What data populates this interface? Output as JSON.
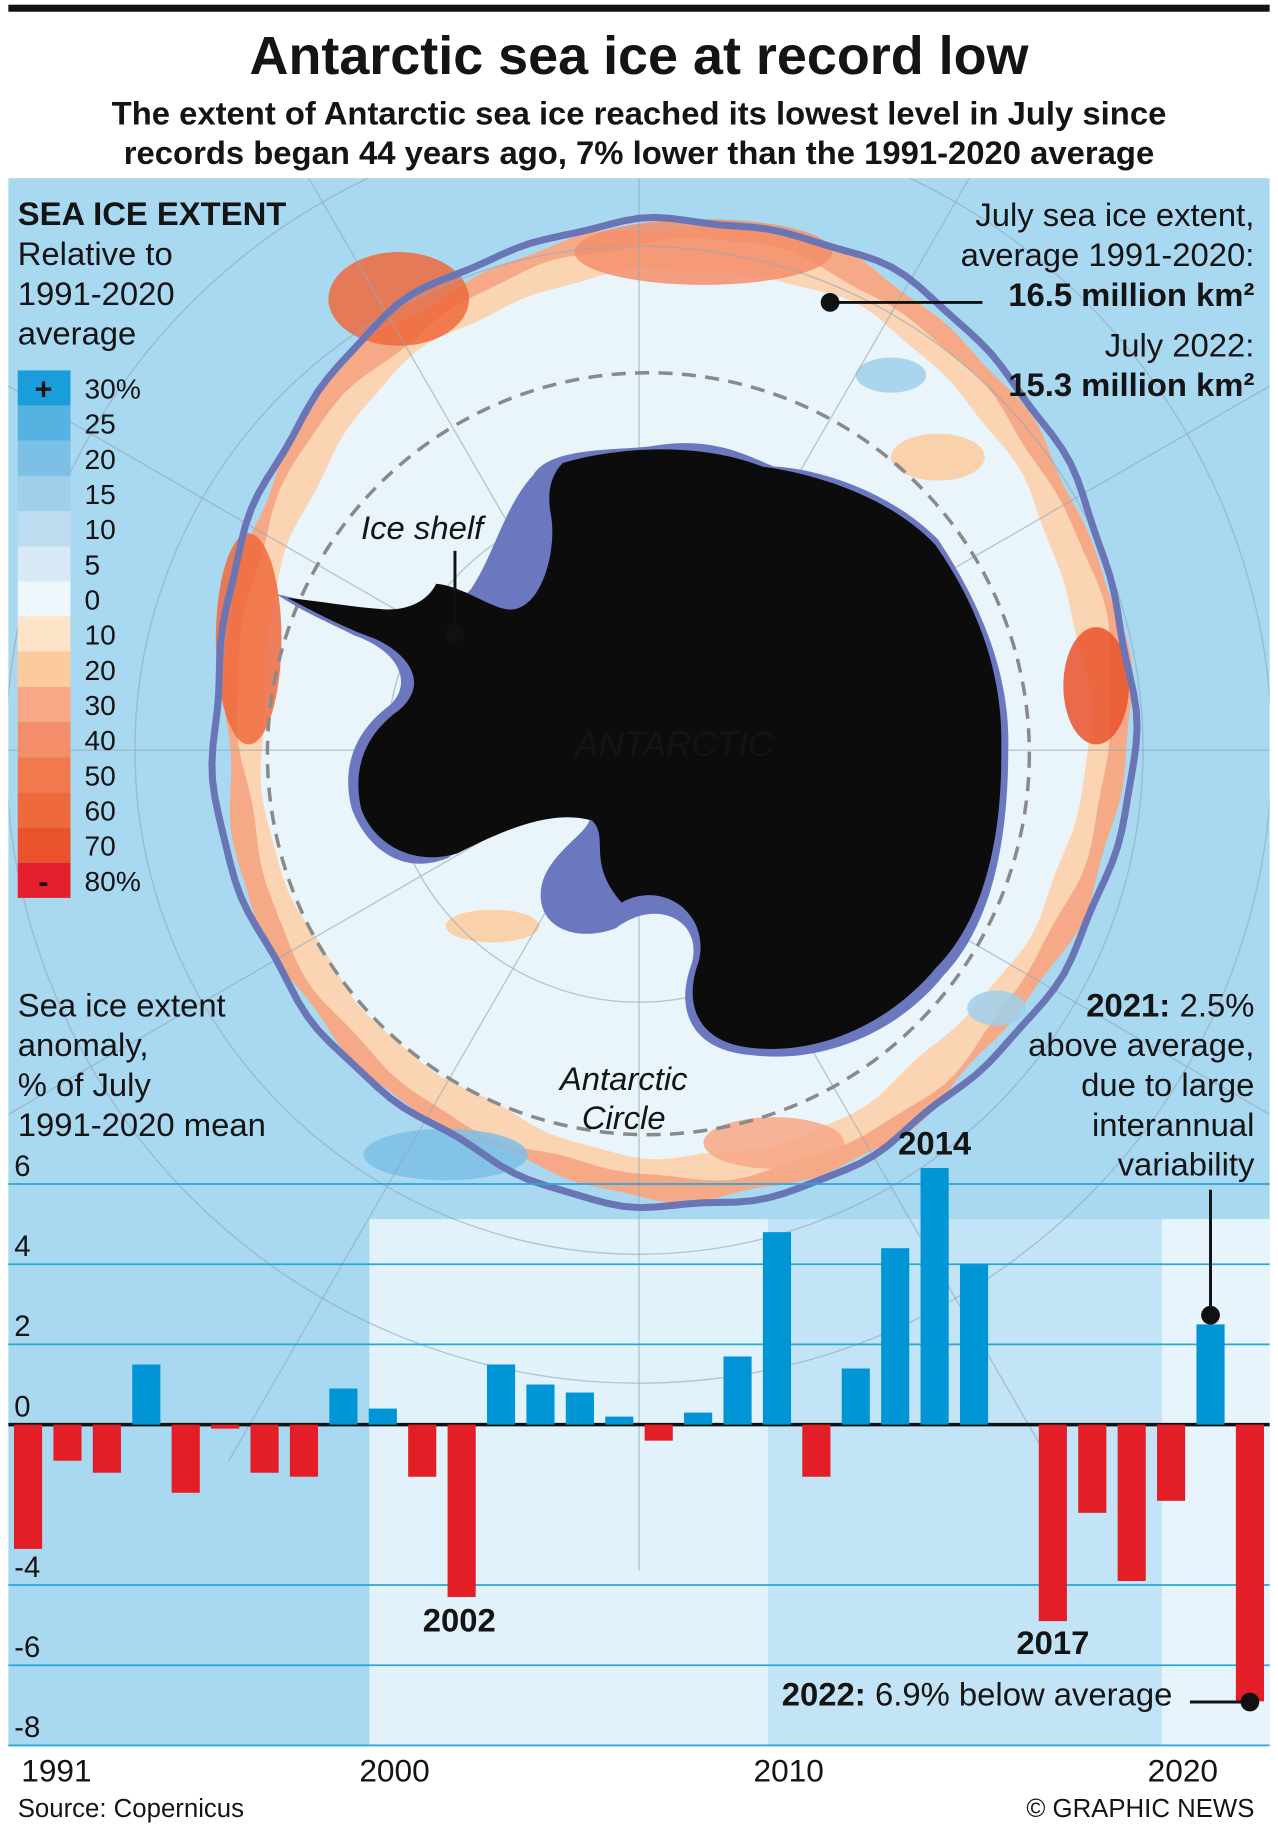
{
  "header": {
    "title": "Antarctic sea ice at record low",
    "subtitle": [
      "The extent of Antarctic sea ice reached its lowest level in July since",
      "records began 44 years ago, 7% lower than the 1991-2020 average"
    ]
  },
  "map": {
    "legend": {
      "title": "SEA ICE EXTENT",
      "subtitle": [
        "Relative to",
        "1991-2020",
        "average"
      ],
      "plus": "+",
      "minus": "-",
      "items": [
        {
          "label": "30%",
          "color": "#1a9ddb"
        },
        {
          "label": "25",
          "color": "#56b2e1"
        },
        {
          "label": "20",
          "color": "#7cc0e6"
        },
        {
          "label": "15",
          "color": "#a0cfeb"
        },
        {
          "label": "10",
          "color": "#bddcf0"
        },
        {
          "label": "5",
          "color": "#d7eaf6"
        },
        {
          "label": "0",
          "color": "#eef7fc"
        },
        {
          "label": "10",
          "color": "#fde3c8"
        },
        {
          "label": "20",
          "color": "#fbcb9e"
        },
        {
          "label": "30",
          "color": "#f7a886"
        },
        {
          "label": "40",
          "color": "#f58e6a"
        },
        {
          "label": "50",
          "color": "#f2784e"
        },
        {
          "label": "60",
          "color": "#ee6a3d"
        },
        {
          "label": "70",
          "color": "#e9522b"
        },
        {
          "label": "80%",
          "color": "#e51f2c"
        }
      ]
    },
    "average_note": [
      "July sea ice extent,",
      "average 1991-2020:",
      "16.5 million km²"
    ],
    "current_note": [
      "July 2022:",
      "15.3 million km²"
    ],
    "ice_shelf": "Ice shelf",
    "continent": "ANTARCTIC",
    "circle": [
      "Antarctic",
      "Circle"
    ]
  },
  "chart_data": {
    "type": "bar",
    "y_label": [
      "Sea ice extent",
      "anomaly,",
      "% of July",
      "1991-2020 mean"
    ],
    "categories": [
      "1991",
      null,
      null,
      null,
      null,
      null,
      null,
      null,
      null,
      "2000",
      null,
      null,
      null,
      null,
      null,
      null,
      null,
      null,
      null,
      "2010",
      null,
      null,
      null,
      null,
      null,
      null,
      null,
      null,
      null,
      "2020",
      null,
      null
    ],
    "values": [
      -3.1,
      -0.9,
      -1.2,
      1.5,
      -1.7,
      -0.1,
      -1.2,
      -1.3,
      0.9,
      0.4,
      -1.3,
      -4.3,
      1.5,
      1.0,
      0.8,
      0.2,
      -0.4,
      0.3,
      1.7,
      4.8,
      -1.3,
      1.4,
      4.4,
      6.4,
      4.0,
      0,
      -4.9,
      -2.2,
      -3.9,
      -1.9,
      2.5,
      -6.9
    ],
    "color_positive": "#0096d6",
    "color_negative": "#e31e27",
    "ylim": [
      -8,
      6.5
    ],
    "yticks": [
      -8,
      -6,
      -4,
      0,
      2,
      4,
      6
    ],
    "grid": true,
    "annotations": [
      {
        "text": "2002"
      },
      {
        "text": "2014"
      },
      {
        "text": "2017"
      },
      {
        "label": "2021:",
        "lines": [
          "2.5%",
          "above average,",
          "due to large",
          "interannual",
          "variability"
        ]
      },
      {
        "label": "2022:",
        "lines": [
          "6.9% below average"
        ]
      }
    ]
  },
  "footer": {
    "source": "Source: Copernicus",
    "credit": "© GRAPHIC NEWS"
  }
}
